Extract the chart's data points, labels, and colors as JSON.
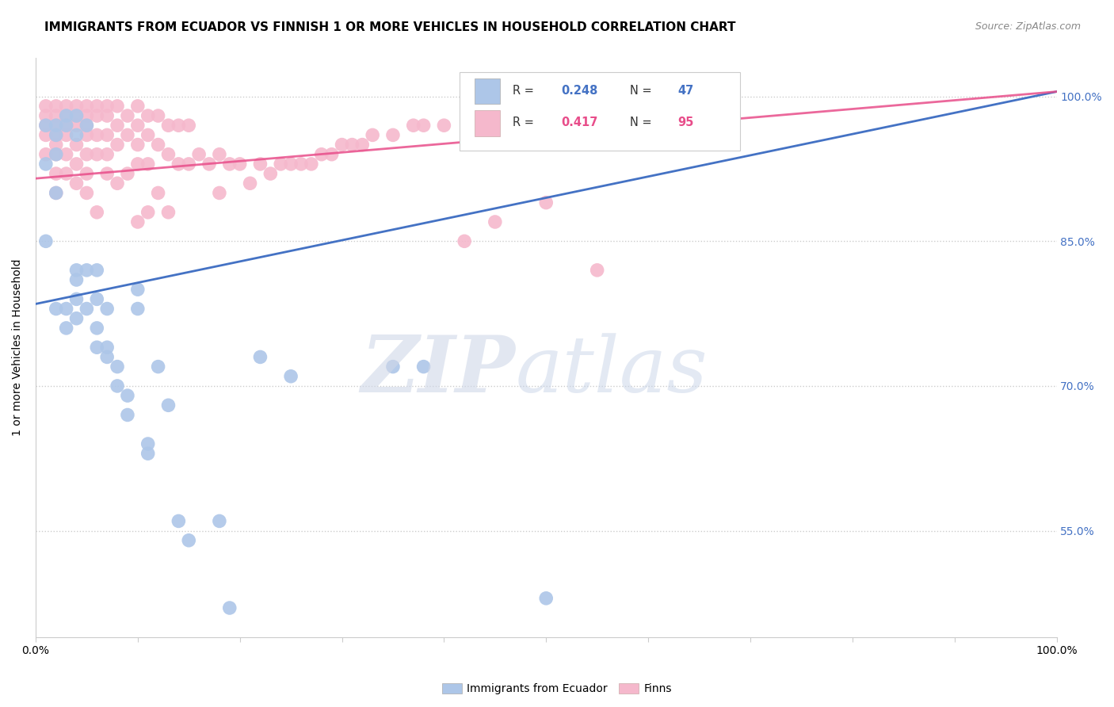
{
  "title": "IMMIGRANTS FROM ECUADOR VS FINNISH 1 OR MORE VEHICLES IN HOUSEHOLD CORRELATION CHART",
  "source": "Source: ZipAtlas.com",
  "ylabel": "1 or more Vehicles in Household",
  "ytick_labels": [
    "55.0%",
    "70.0%",
    "85.0%",
    "100.0%"
  ],
  "ytick_values": [
    0.55,
    0.7,
    0.85,
    1.0
  ],
  "xtick_values": [
    0.0,
    0.1,
    0.2,
    0.3,
    0.4,
    0.5,
    0.6,
    0.7,
    0.8,
    0.9,
    1.0
  ],
  "xlim": [
    0.0,
    1.0
  ],
  "ylim": [
    0.44,
    1.04
  ],
  "blue_scatter_x": [
    0.01,
    0.01,
    0.01,
    0.02,
    0.02,
    0.02,
    0.02,
    0.02,
    0.03,
    0.03,
    0.03,
    0.03,
    0.04,
    0.04,
    0.04,
    0.04,
    0.04,
    0.04,
    0.05,
    0.05,
    0.05,
    0.06,
    0.06,
    0.06,
    0.06,
    0.07,
    0.07,
    0.07,
    0.08,
    0.08,
    0.09,
    0.09,
    0.1,
    0.1,
    0.11,
    0.11,
    0.12,
    0.13,
    0.14,
    0.15,
    0.18,
    0.19,
    0.22,
    0.25,
    0.35,
    0.38,
    0.5
  ],
  "blue_scatter_y": [
    0.97,
    0.93,
    0.85,
    0.97,
    0.96,
    0.94,
    0.9,
    0.78,
    0.98,
    0.97,
    0.78,
    0.76,
    0.98,
    0.96,
    0.82,
    0.81,
    0.79,
    0.77,
    0.97,
    0.82,
    0.78,
    0.82,
    0.79,
    0.76,
    0.74,
    0.78,
    0.74,
    0.73,
    0.72,
    0.7,
    0.69,
    0.67,
    0.8,
    0.78,
    0.64,
    0.63,
    0.72,
    0.68,
    0.56,
    0.54,
    0.56,
    0.47,
    0.73,
    0.71,
    0.72,
    0.72,
    0.48
  ],
  "pink_scatter_x": [
    0.01,
    0.01,
    0.01,
    0.01,
    0.01,
    0.02,
    0.02,
    0.02,
    0.02,
    0.02,
    0.02,
    0.02,
    0.02,
    0.03,
    0.03,
    0.03,
    0.03,
    0.03,
    0.03,
    0.04,
    0.04,
    0.04,
    0.04,
    0.04,
    0.04,
    0.05,
    0.05,
    0.05,
    0.05,
    0.05,
    0.05,
    0.05,
    0.06,
    0.06,
    0.06,
    0.06,
    0.06,
    0.07,
    0.07,
    0.07,
    0.07,
    0.07,
    0.08,
    0.08,
    0.08,
    0.08,
    0.09,
    0.09,
    0.09,
    0.1,
    0.1,
    0.1,
    0.1,
    0.1,
    0.11,
    0.11,
    0.11,
    0.11,
    0.12,
    0.12,
    0.12,
    0.13,
    0.13,
    0.13,
    0.14,
    0.14,
    0.15,
    0.15,
    0.16,
    0.17,
    0.18,
    0.18,
    0.19,
    0.2,
    0.21,
    0.22,
    0.23,
    0.24,
    0.25,
    0.26,
    0.27,
    0.28,
    0.29,
    0.3,
    0.31,
    0.32,
    0.33,
    0.35,
    0.37,
    0.38,
    0.4,
    0.42,
    0.45,
    0.5,
    0.55
  ],
  "pink_scatter_y": [
    0.99,
    0.98,
    0.97,
    0.96,
    0.94,
    0.99,
    0.98,
    0.97,
    0.96,
    0.95,
    0.94,
    0.92,
    0.9,
    0.99,
    0.98,
    0.97,
    0.96,
    0.94,
    0.92,
    0.99,
    0.98,
    0.97,
    0.95,
    0.93,
    0.91,
    0.99,
    0.98,
    0.97,
    0.96,
    0.94,
    0.92,
    0.9,
    0.99,
    0.98,
    0.96,
    0.94,
    0.88,
    0.99,
    0.98,
    0.96,
    0.94,
    0.92,
    0.99,
    0.97,
    0.95,
    0.91,
    0.98,
    0.96,
    0.92,
    0.99,
    0.97,
    0.95,
    0.93,
    0.87,
    0.98,
    0.96,
    0.93,
    0.88,
    0.98,
    0.95,
    0.9,
    0.97,
    0.94,
    0.88,
    0.97,
    0.93,
    0.97,
    0.93,
    0.94,
    0.93,
    0.94,
    0.9,
    0.93,
    0.93,
    0.91,
    0.93,
    0.92,
    0.93,
    0.93,
    0.93,
    0.93,
    0.94,
    0.94,
    0.95,
    0.95,
    0.95,
    0.96,
    0.96,
    0.97,
    0.97,
    0.97,
    0.85,
    0.87,
    0.89,
    0.82
  ],
  "blue_line": {
    "x0": 0.0,
    "x1": 1.0,
    "y0": 0.785,
    "y1": 1.005
  },
  "pink_line": {
    "x0": 0.0,
    "x1": 1.0,
    "y0": 0.915,
    "y1": 1.005
  },
  "blue_color": "#4472c4",
  "pink_color": "#e84d8a",
  "blue_scatter_color": "#adc6e8",
  "pink_scatter_color": "#f5b8cc",
  "background_color": "#ffffff",
  "grid_color": "#cccccc",
  "watermark_zip": "ZIP",
  "watermark_atlas": "atlas",
  "title_fontsize": 11,
  "source_fontsize": 9,
  "axis_label_fontsize": 10,
  "tick_label_fontsize": 10,
  "legend_R_blue": "0.248",
  "legend_N_blue": "47",
  "legend_R_pink": "0.417",
  "legend_N_pink": "95"
}
